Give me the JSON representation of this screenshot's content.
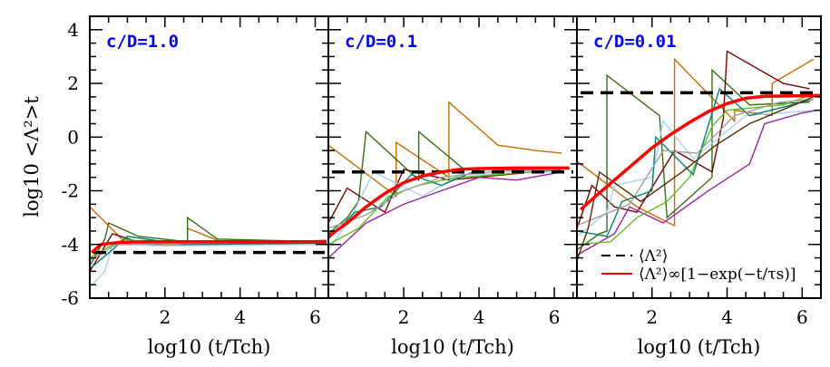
{
  "chart_data": [
    {
      "type": "line",
      "panel_label": "c/D=1.0",
      "xlabel": "log10 (t/Tch)",
      "ylabel": "log10 <Λ²>t",
      "xlim": [
        0,
        6.35
      ],
      "ylim": [
        -6,
        4.5
      ],
      "xticks": [
        2,
        4,
        6
      ],
      "yticks": [
        -6,
        -4,
        -2,
        0,
        2,
        4
      ],
      "dashed_level": -4.3,
      "fit_curve": [
        [
          0.05,
          -4.3
        ],
        [
          0.3,
          -4.0
        ],
        [
          0.8,
          -3.92
        ],
        [
          1.5,
          -3.9
        ],
        [
          6.3,
          -3.9
        ]
      ],
      "series": [
        {
          "color": "#cc6a00",
          "points": [
            [
              0,
              -2.6
            ],
            [
              1.0,
              -4.0
            ],
            [
              2.6,
              -4.0
            ],
            [
              2.6,
              -3.4
            ],
            [
              3.5,
              -3.9
            ],
            [
              6.3,
              -3.95
            ]
          ]
        },
        {
          "color": "#3a6e14",
          "points": [
            [
              0,
              -4.8
            ],
            [
              0.4,
              -3.8
            ],
            [
              0.5,
              -3.2
            ],
            [
              1.3,
              -3.7
            ],
            [
              2.6,
              -3.9
            ],
            [
              2.6,
              -3.0
            ],
            [
              3.4,
              -3.8
            ],
            [
              6.3,
              -3.9
            ]
          ]
        },
        {
          "color": "#7a0000",
          "points": [
            [
              0,
              -5.0
            ],
            [
              0.3,
              -4.3
            ],
            [
              0.6,
              -3.6
            ],
            [
              1.5,
              -4.0
            ],
            [
              6.3,
              -3.85
            ]
          ]
        },
        {
          "color": "#a8d0f0",
          "points": [
            [
              0,
              -5.6
            ],
            [
              0.4,
              -5.0
            ],
            [
              0.6,
              -4.0
            ],
            [
              2,
              -4.05
            ],
            [
              6.3,
              -4.0
            ]
          ]
        },
        {
          "color": "#60c020",
          "points": [
            [
              0,
              -4.5
            ],
            [
              0.5,
              -4.1
            ],
            [
              0.9,
              -3.8
            ],
            [
              2,
              -4.0
            ],
            [
              4,
              -3.9
            ],
            [
              6.3,
              -3.9
            ]
          ]
        },
        {
          "color": "#008070",
          "points": [
            [
              0,
              -4.9
            ],
            [
              0.6,
              -4.2
            ],
            [
              1.0,
              -3.7
            ],
            [
              2.5,
              -4.0
            ],
            [
              6.3,
              -3.95
            ]
          ]
        },
        {
          "color": "#a0a0a0",
          "points": [
            [
              0,
              -4.6
            ],
            [
              0.7,
              -4.0
            ],
            [
              3,
              -3.95
            ],
            [
              6.3,
              -3.9
            ]
          ]
        }
      ]
    },
    {
      "type": "line",
      "panel_label": "c/D=0.1",
      "xlabel": "log10 (t/Tch)",
      "xlim": [
        0,
        6.6
      ],
      "ylim": [
        -6,
        4.5
      ],
      "xticks": [
        2,
        4,
        6
      ],
      "dashed_level": -1.3,
      "fit_curve": [
        [
          0,
          -3.7
        ],
        [
          0.5,
          -3.2
        ],
        [
          1,
          -2.6
        ],
        [
          1.5,
          -2.1
        ],
        [
          2,
          -1.7
        ],
        [
          2.5,
          -1.45
        ],
        [
          3,
          -1.3
        ],
        [
          3.5,
          -1.2
        ],
        [
          4,
          -1.17
        ],
        [
          5,
          -1.15
        ],
        [
          6.4,
          -1.15
        ]
      ],
      "series": [
        {
          "color": "#cc6a00",
          "points": [
            [
              0,
              -0.3
            ],
            [
              1.8,
              -2.2
            ],
            [
              1.8,
              -0.2
            ],
            [
              3.2,
              -1.5
            ],
            [
              3.2,
              1.3
            ],
            [
              4.5,
              -0.3
            ],
            [
              5.5,
              -0.5
            ],
            [
              6.2,
              -0.6
            ]
          ]
        },
        {
          "color": "#3a6e14",
          "points": [
            [
              0,
              -3.6
            ],
            [
              0.5,
              -3.0
            ],
            [
              0.8,
              -2.4
            ],
            [
              1.0,
              0.2
            ],
            [
              2.4,
              -1.6
            ],
            [
              2.4,
              0.2
            ],
            [
              3.6,
              -1.2
            ],
            [
              6.2,
              -1.2
            ]
          ]
        },
        {
          "color": "#7a0000",
          "points": [
            [
              0,
              -3.2
            ],
            [
              0.5,
              -1.9
            ],
            [
              1.5,
              -2.8
            ],
            [
              2.0,
              -1.2
            ],
            [
              3.2,
              -1.6
            ],
            [
              6.2,
              -1.2
            ]
          ]
        },
        {
          "color": "#a8d0f0",
          "points": [
            [
              0,
              -4.2
            ],
            [
              0.6,
              -3.0
            ],
            [
              1.2,
              -1.3
            ],
            [
              2.5,
              -2.2
            ],
            [
              3.5,
              -1.4
            ],
            [
              6.2,
              -1.3
            ]
          ]
        },
        {
          "color": "#a020a0",
          "points": [
            [
              0,
              -4.5
            ],
            [
              1,
              -3.2
            ],
            [
              2,
              -2.5
            ],
            [
              3,
              -2.0
            ],
            [
              4,
              -1.5
            ],
            [
              5,
              -1.6
            ],
            [
              6.2,
              -1.3
            ]
          ]
        },
        {
          "color": "#60c020",
          "points": [
            [
              0,
              -4.0
            ],
            [
              0.8,
              -3.4
            ],
            [
              1.6,
              -2.2
            ],
            [
              2.4,
              -1.8
            ],
            [
              3.4,
              -1.5
            ],
            [
              4.5,
              -1.4
            ],
            [
              6.2,
              -1.2
            ]
          ]
        },
        {
          "color": "#008070",
          "points": [
            [
              0,
              -3.8
            ],
            [
              0.7,
              -2.8
            ],
            [
              1.4,
              -2.6
            ],
            [
              2.2,
              -1.4
            ],
            [
              3.0,
              -1.8
            ],
            [
              4,
              -1.2
            ],
            [
              6.2,
              -1.25
            ]
          ]
        },
        {
          "color": "#a0a0a0",
          "points": [
            [
              0,
              -3.4
            ],
            [
              1,
              -2.9
            ],
            [
              2,
              -2.0
            ],
            [
              3,
              -1.5
            ],
            [
              4.2,
              -1.3
            ],
            [
              6.2,
              -1.2
            ]
          ]
        }
      ]
    },
    {
      "type": "line",
      "panel_label": "c/D=0.01",
      "xlabel": "log10 (t/Tch)",
      "xlim": [
        0,
        6.5
      ],
      "ylim": [
        -6,
        4.5
      ],
      "xticks": [
        2,
        4,
        6
      ],
      "dashed_level": 1.65,
      "fit_curve": [
        [
          0.1,
          -2.7
        ],
        [
          0.5,
          -2.2
        ],
        [
          1,
          -1.6
        ],
        [
          1.5,
          -1.0
        ],
        [
          2,
          -0.4
        ],
        [
          2.5,
          0.1
        ],
        [
          3,
          0.55
        ],
        [
          3.5,
          0.95
        ],
        [
          4,
          1.25
        ],
        [
          4.5,
          1.45
        ],
        [
          5,
          1.52
        ],
        [
          6.5,
          1.55
        ]
      ],
      "series": [
        {
          "color": "#cc6a00",
          "points": [
            [
              0,
              -0.9
            ],
            [
              1.6,
              -2.6
            ],
            [
              2.6,
              -3.3
            ],
            [
              2.6,
              2.9
            ],
            [
              4.2,
              0.6
            ],
            [
              4.2,
              1.0
            ],
            [
              5.2,
              0.8
            ],
            [
              5.2,
              2.0
            ],
            [
              6.3,
              2.9
            ]
          ]
        },
        {
          "color": "#3a6e14",
          "points": [
            [
              0,
              -4.2
            ],
            [
              0.6,
              -3.6
            ],
            [
              0.8,
              -3.5
            ],
            [
              0.8,
              2.3
            ],
            [
              2.2,
              0.8
            ],
            [
              2.4,
              -3.0
            ],
            [
              3.6,
              -1.5
            ],
            [
              3.6,
              2.5
            ],
            [
              4.6,
              1.2
            ],
            [
              6.2,
              1.3
            ]
          ]
        },
        {
          "color": "#7a0000",
          "points": [
            [
              0,
              -3.4
            ],
            [
              0.4,
              -1.8
            ],
            [
              1.0,
              -2.6
            ],
            [
              1.6,
              -2.8
            ],
            [
              2.6,
              -0.5
            ],
            [
              3.6,
              -1.3
            ],
            [
              3.9,
              0.7
            ],
            [
              4.0,
              3.2
            ],
            [
              5.5,
              2.0
            ],
            [
              6.2,
              1.8
            ]
          ]
        },
        {
          "color": "#a8d0f0",
          "points": [
            [
              0,
              -3.7
            ],
            [
              0.8,
              -2.8
            ],
            [
              1.0,
              -1.8
            ],
            [
              2.0,
              -1.5
            ],
            [
              2.3,
              0.6
            ],
            [
              3.1,
              -0.8
            ],
            [
              4.5,
              0.8
            ],
            [
              6.4,
              1.0
            ]
          ]
        },
        {
          "color": "#a020a0",
          "points": [
            [
              0,
              -4.4
            ],
            [
              1,
              -3.6
            ],
            [
              1.4,
              -2.6
            ],
            [
              2.3,
              -3.2
            ],
            [
              3.5,
              -2.0
            ],
            [
              4.6,
              -1.0
            ],
            [
              5.0,
              0.5
            ],
            [
              6.0,
              0.9
            ],
            [
              6.4,
              1.0
            ]
          ]
        },
        {
          "color": "#60c020",
          "points": [
            [
              0,
              -4.0
            ],
            [
              0.9,
              -3.9
            ],
            [
              1.6,
              -3.0
            ],
            [
              2.4,
              -2.4
            ],
            [
              3.0,
              -1.5
            ],
            [
              3.6,
              0.4
            ],
            [
              4.0,
              1.0
            ],
            [
              5.5,
              1.2
            ],
            [
              6.3,
              1.6
            ]
          ]
        },
        {
          "color": "#008070",
          "points": [
            [
              0,
              -3.5
            ],
            [
              0.8,
              -3.7
            ],
            [
              1.2,
              -2.4
            ],
            [
              2.0,
              -2.0
            ],
            [
              2.1,
              0.0
            ],
            [
              3.1,
              -1.4
            ],
            [
              3.8,
              1.8
            ],
            [
              4.6,
              0.8
            ],
            [
              6.3,
              1.4
            ]
          ]
        },
        {
          "color": "#a0a0a0",
          "points": [
            [
              0,
              -3.3
            ],
            [
              0.7,
              -2.9
            ],
            [
              1.4,
              -2.5
            ],
            [
              2.3,
              -0.5
            ],
            [
              3.2,
              -0.6
            ],
            [
              4.2,
              0.8
            ],
            [
              5.4,
              1.3
            ],
            [
              6.3,
              1.4
            ]
          ]
        },
        {
          "color": "#5a2a00",
          "points": [
            [
              0,
              -4.6
            ],
            [
              0.3,
              -3.4
            ],
            [
              0.6,
              -1.3
            ],
            [
              1.7,
              -2.4
            ],
            [
              2.8,
              -1.3
            ],
            [
              3.7,
              -0.3
            ],
            [
              4.6,
              0.5
            ],
            [
              6.3,
              1.5
            ]
          ]
        }
      ]
    }
  ],
  "legend": {
    "placement": "bottom-right",
    "dashed_label": "⟨Λ²⟩",
    "fit_label": "⟨Λ²⟩∞[1−exp(−t/τs)]",
    "dashed_color": "#000000",
    "fit_color": "#ff0000"
  }
}
